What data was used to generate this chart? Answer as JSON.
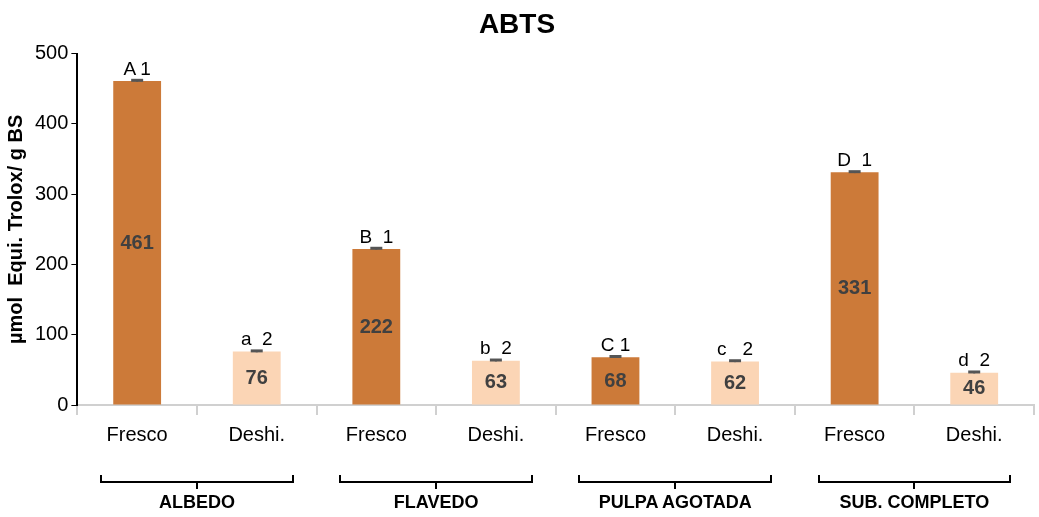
{
  "chart_data": {
    "type": "bar",
    "title": "ABTS",
    "ylabel": "µmol  Equi. Trolox/ g BS",
    "categories": [
      "Fresco",
      "Deshi.",
      "Fresco",
      "Deshi.",
      "Fresco",
      "Deshi.",
      "Fresco",
      "Deshi."
    ],
    "values": [
      461,
      76,
      222,
      63,
      68,
      62,
      331,
      46
    ],
    "colors": [
      "#cc7a39",
      "#fbd5b5",
      "#cc7a39",
      "#fbd5b5",
      "#cc7a39",
      "#fbd5b5",
      "#cc7a39",
      "#fbd5b5"
    ],
    "errors": [
      1,
      1,
      1,
      1,
      1,
      1,
      1,
      1
    ],
    "ylim": [
      0,
      500
    ],
    "yticks": [
      0,
      100,
      200,
      300,
      400,
      500
    ],
    "grid": false,
    "legend": false,
    "data_labels": true,
    "annotations": [
      "ALBEDO",
      "FLAVEDO",
      "PULPA AGOTADA",
      "SUB. COMPLETO",
      {
        "text": "A 1",
        "y": 461
      },
      {
        "text": "a  2",
        "y": 76
      },
      {
        "text": "B  1",
        "y": 222
      },
      {
        "text": "b  2",
        "y": 63
      },
      {
        "text": "C 1",
        "y": 68
      },
      {
        "text": "c   2",
        "y": 62
      },
      {
        "text": "D  1",
        "y": 331
      },
      {
        "text": "d  2",
        "y": 46
      }
    ]
  }
}
